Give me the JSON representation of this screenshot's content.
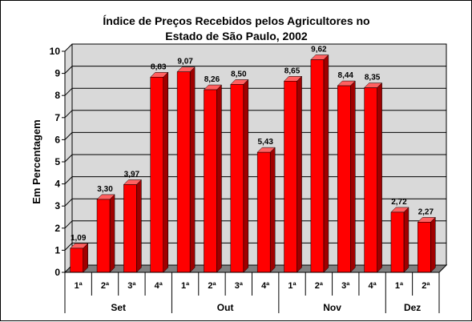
{
  "chart_data": {
    "type": "bar",
    "title_lines": [
      "Índice de Preços Recebidos pelos Agricultores no",
      "Estado de São Paulo, 2002"
    ],
    "ylabel": "Em Percentagem",
    "ylim": [
      0,
      10
    ],
    "yticks": [
      "0",
      "1",
      "2",
      "3",
      "4",
      "5",
      "6",
      "7",
      "8",
      "9",
      "10"
    ],
    "grid": true,
    "categories": [
      "1ª",
      "2ª",
      "3ª",
      "4ª",
      "1ª",
      "2ª",
      "3ª",
      "4ª",
      "1ª",
      "2ª",
      "3ª",
      "4ª",
      "1ª",
      "2ª"
    ],
    "groups": [
      {
        "label": "Set",
        "count": 4
      },
      {
        "label": "Out",
        "count": 4
      },
      {
        "label": "Nov",
        "count": 4
      },
      {
        "label": "Dez",
        "count": 2
      }
    ],
    "values": [
      1.09,
      3.3,
      3.97,
      8.83,
      9.07,
      8.26,
      8.5,
      5.43,
      8.65,
      9.62,
      8.44,
      8.35,
      2.72,
      2.27
    ],
    "value_labels": [
      "1,09",
      "3,30",
      "3,97",
      "8,83",
      "9,07",
      "8,26",
      "8,50",
      "5,43",
      "8,65",
      "9,62",
      "8,44",
      "8,35",
      "2,72",
      "2,27"
    ],
    "colors": {
      "bar_front": "#ff0000",
      "bar_side": "#a00000",
      "bar_top": "#ff6060",
      "back_wall": "#d9d9d9",
      "floor": "#808080"
    }
  }
}
